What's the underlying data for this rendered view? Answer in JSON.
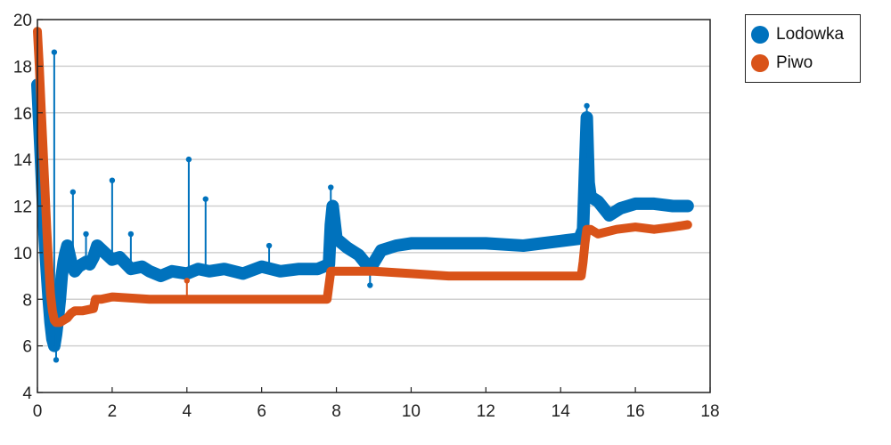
{
  "chart_data": {
    "type": "line",
    "title": "",
    "xlabel": "",
    "ylabel": "",
    "xlim": [
      0,
      18
    ],
    "ylim": [
      4,
      20
    ],
    "xticks": [
      "0",
      "2",
      "4",
      "6",
      "8",
      "10",
      "12",
      "14",
      "16",
      "18"
    ],
    "yticks": [
      "4",
      "6",
      "8",
      "10",
      "12",
      "14",
      "16",
      "18",
      "20"
    ],
    "grid": "horizontal",
    "legend_position": "outside top-right",
    "series": [
      {
        "name": "Lodowka",
        "color": "#0072BD",
        "x": [
          0.0,
          0.05,
          0.1,
          0.15,
          0.2,
          0.25,
          0.3,
          0.35,
          0.4,
          0.45,
          0.5,
          0.55,
          0.6,
          0.65,
          0.7,
          0.75,
          0.8,
          0.9,
          1.0,
          1.1,
          1.2,
          1.3,
          1.4,
          1.5,
          1.6,
          1.8,
          2.0,
          2.2,
          2.5,
          2.8,
          3.0,
          3.3,
          3.6,
          4.0,
          4.3,
          4.6,
          5.0,
          5.5,
          6.0,
          6.5,
          7.0,
          7.5,
          7.8,
          7.85,
          7.9,
          8.0,
          8.3,
          8.6,
          8.9,
          9.2,
          9.6,
          10.0,
          11.0,
          12.0,
          13.0,
          14.0,
          14.5,
          14.6,
          14.65,
          14.7,
          14.75,
          14.8,
          15.0,
          15.3,
          15.6,
          16.0,
          16.5,
          17.0,
          17.4
        ],
        "y": [
          17.2,
          15.5,
          13.8,
          12.0,
          10.5,
          9.2,
          8.0,
          7.0,
          6.3,
          6.0,
          6.5,
          7.2,
          8.0,
          9.0,
          9.6,
          10.0,
          10.3,
          9.6,
          9.2,
          9.4,
          9.5,
          9.6,
          9.5,
          9.8,
          10.3,
          10.0,
          9.7,
          9.8,
          9.3,
          9.4,
          9.2,
          9.0,
          9.2,
          9.1,
          9.3,
          9.2,
          9.3,
          9.1,
          9.4,
          9.2,
          9.3,
          9.3,
          9.5,
          11.2,
          12.0,
          10.6,
          10.2,
          9.9,
          9.3,
          10.1,
          10.3,
          10.4,
          10.4,
          10.4,
          10.3,
          10.5,
          10.6,
          11.0,
          13.5,
          15.8,
          13.0,
          12.4,
          12.2,
          11.6,
          11.9,
          12.1,
          12.1,
          12.0,
          12.0
        ],
        "spikes": [
          {
            "x": 0.45,
            "y": 18.6
          },
          {
            "x": 0.5,
            "y": 5.4
          },
          {
            "x": 0.95,
            "y": 12.6
          },
          {
            "x": 1.3,
            "y": 10.8
          },
          {
            "x": 2.0,
            "y": 13.1
          },
          {
            "x": 2.5,
            "y": 10.8
          },
          {
            "x": 4.05,
            "y": 14.0
          },
          {
            "x": 4.5,
            "y": 12.3
          },
          {
            "x": 6.2,
            "y": 10.3
          },
          {
            "x": 7.85,
            "y": 12.8
          },
          {
            "x": 8.9,
            "y": 8.6
          },
          {
            "x": 14.7,
            "y": 16.3
          }
        ]
      },
      {
        "name": "Piwo",
        "color": "#D95319",
        "x": [
          0.0,
          0.05,
          0.1,
          0.15,
          0.2,
          0.25,
          0.3,
          0.35,
          0.4,
          0.45,
          0.5,
          0.55,
          0.6,
          0.7,
          0.8,
          0.9,
          1.0,
          1.2,
          1.5,
          1.55,
          1.7,
          2.0,
          3.0,
          4.0,
          5.0,
          6.0,
          7.0,
          7.75,
          7.8,
          7.85,
          8.0,
          9.0,
          10.0,
          11.0,
          12.0,
          13.0,
          14.0,
          14.55,
          14.6,
          14.65,
          14.7,
          14.8,
          15.0,
          15.5,
          16.0,
          16.5,
          17.0,
          17.4
        ],
        "y": [
          19.5,
          18.0,
          16.2,
          14.5,
          12.8,
          11.0,
          9.5,
          8.2,
          7.5,
          7.1,
          7.0,
          7.0,
          7.0,
          7.1,
          7.2,
          7.4,
          7.5,
          7.5,
          7.6,
          8.0,
          8.0,
          8.1,
          8.0,
          8.0,
          8.0,
          8.0,
          8.0,
          8.0,
          8.6,
          9.2,
          9.2,
          9.2,
          9.1,
          9.0,
          9.0,
          9.0,
          9.0,
          9.0,
          9.6,
          10.4,
          11.0,
          11.0,
          10.8,
          11.0,
          11.1,
          11.0,
          11.1,
          11.2
        ],
        "spikes": [
          {
            "x": 4.0,
            "y": 8.8
          }
        ]
      }
    ]
  }
}
